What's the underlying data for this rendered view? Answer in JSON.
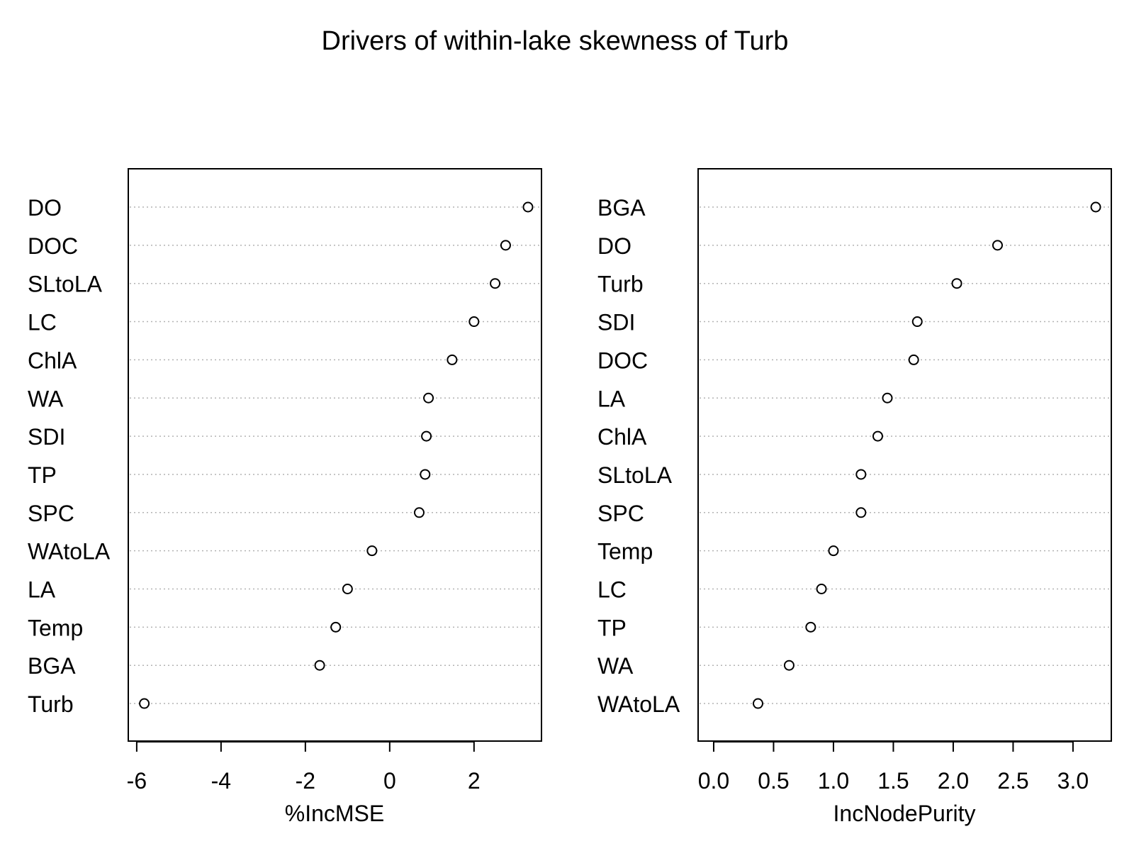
{
  "title": "Drivers of within-lake skewness of Turb",
  "chart_data": [
    {
      "type": "scatter",
      "subtype": "dotchart",
      "xlabel": "%IncMSE",
      "ylabel": "",
      "xlim": [
        -6.2,
        3.6
      ],
      "xticks": [
        -6,
        -4,
        -2,
        0,
        2
      ],
      "xtick_labels": [
        "-6",
        "-4",
        "-2",
        "0",
        "2"
      ],
      "grid": "dotted horizontal",
      "categories": [
        "DO",
        "DOC",
        "SLtoLA",
        "LC",
        "ChlA",
        "WA",
        "SDI",
        "TP",
        "SPC",
        "WAtoLA",
        "LA",
        "Temp",
        "BGA",
        "Turb"
      ],
      "values": [
        3.28,
        2.75,
        2.5,
        2.0,
        1.48,
        0.92,
        0.87,
        0.84,
        0.7,
        -0.42,
        -1.0,
        -1.28,
        -1.66,
        -5.82
      ]
    },
    {
      "type": "scatter",
      "subtype": "dotchart",
      "xlabel": "IncNodePurity",
      "ylabel": "",
      "xlim": [
        -0.13,
        3.32
      ],
      "xticks": [
        0.0,
        0.5,
        1.0,
        1.5,
        2.0,
        2.5,
        3.0
      ],
      "xtick_labels": [
        "0.0",
        "0.5",
        "1.0",
        "1.5",
        "2.0",
        "2.5",
        "3.0"
      ],
      "grid": "dotted horizontal",
      "categories": [
        "BGA",
        "DO",
        "Turb",
        "SDI",
        "DOC",
        "LA",
        "ChlA",
        "SLtoLA",
        "SPC",
        "Temp",
        "LC",
        "TP",
        "WA",
        "WAtoLA"
      ],
      "values": [
        3.19,
        2.37,
        2.03,
        1.7,
        1.67,
        1.45,
        1.37,
        1.23,
        1.23,
        1.0,
        0.9,
        0.81,
        0.63,
        0.37
      ]
    }
  ]
}
